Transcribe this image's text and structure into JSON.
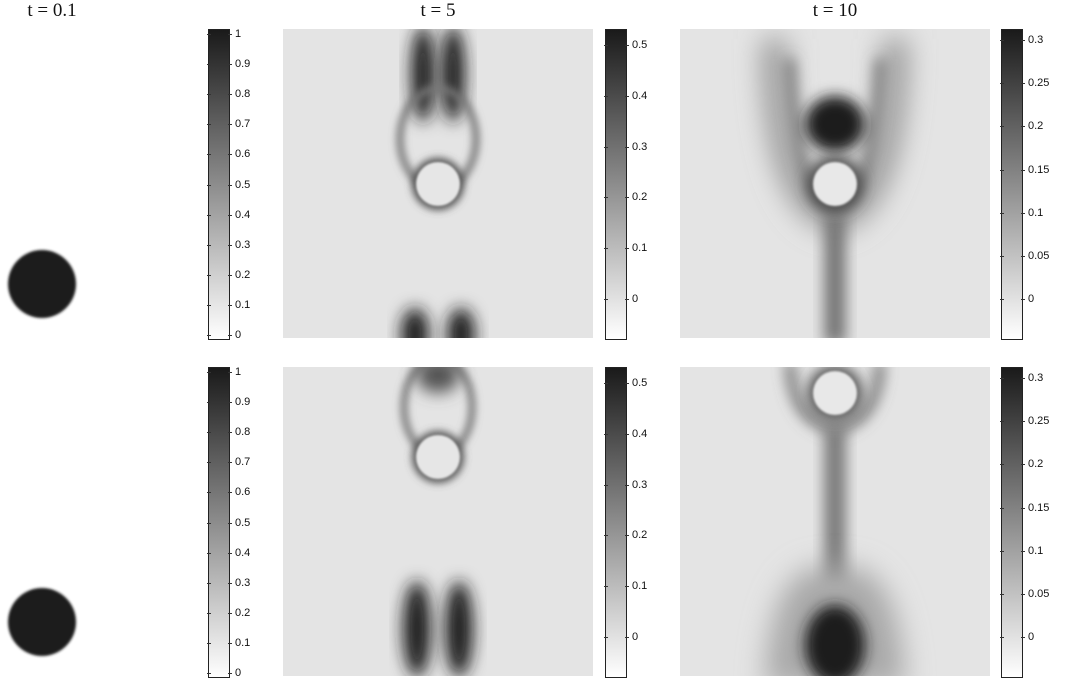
{
  "columns": [
    {
      "key": "t01",
      "title": "t = 0.1"
    },
    {
      "key": "t5",
      "title": "t = 5"
    },
    {
      "key": "t10",
      "title": "t = 10"
    }
  ],
  "chart_data": {
    "type": "heatmap",
    "grid": false,
    "colormap": "gray (white = low, black = high)",
    "panels": [
      {
        "row": 1,
        "time": "t = 0.1",
        "description": "single dark disc",
        "colorbar_ticks": [
          0,
          0.1,
          0.2,
          0.3,
          0.4,
          0.5,
          0.6,
          0.7,
          0.8,
          0.9,
          1
        ],
        "colorbar_range": [
          0,
          1
        ]
      },
      {
        "row": 1,
        "time": "t = 5",
        "colorbar_ticks": [
          0,
          0.1,
          0.2,
          0.3,
          0.4,
          0.5
        ],
        "colorbar_range": [
          -0.06,
          0.53
        ]
      },
      {
        "row": 1,
        "time": "t = 10",
        "colorbar_ticks": [
          0,
          0.05,
          0.1,
          0.15,
          0.2,
          0.25,
          0.3
        ],
        "colorbar_range": [
          -0.03,
          0.32
        ]
      },
      {
        "row": 2,
        "time": "t = 0.1",
        "description": "single dark disc",
        "colorbar_ticks": [
          0,
          0.1,
          0.2,
          0.3,
          0.4,
          0.5,
          0.6,
          0.7,
          0.8,
          0.9,
          1
        ],
        "colorbar_range": [
          0,
          1
        ]
      },
      {
        "row": 2,
        "time": "t = 5",
        "colorbar_ticks": [
          0,
          0.1,
          0.2,
          0.3,
          0.4,
          0.5
        ],
        "colorbar_range": [
          -0.06,
          0.53
        ]
      },
      {
        "row": 2,
        "time": "t = 10",
        "colorbar_ticks": [
          0,
          0.05,
          0.1,
          0.15,
          0.2,
          0.25,
          0.3
        ],
        "colorbar_range": [
          -0.03,
          0.32
        ]
      }
    ]
  },
  "colorbars": {
    "cb1": [
      "0",
      "0.1",
      "0.2",
      "0.3",
      "0.4",
      "0.5",
      "0.6",
      "0.7",
      "0.8",
      "0.9",
      "1"
    ],
    "cb2": [
      "0",
      "0.1",
      "0.2",
      "0.3",
      "0.4",
      "0.5"
    ],
    "cb3": [
      "0",
      "0.05",
      "0.1",
      "0.15",
      "0.2",
      "0.25",
      "0.3"
    ]
  }
}
